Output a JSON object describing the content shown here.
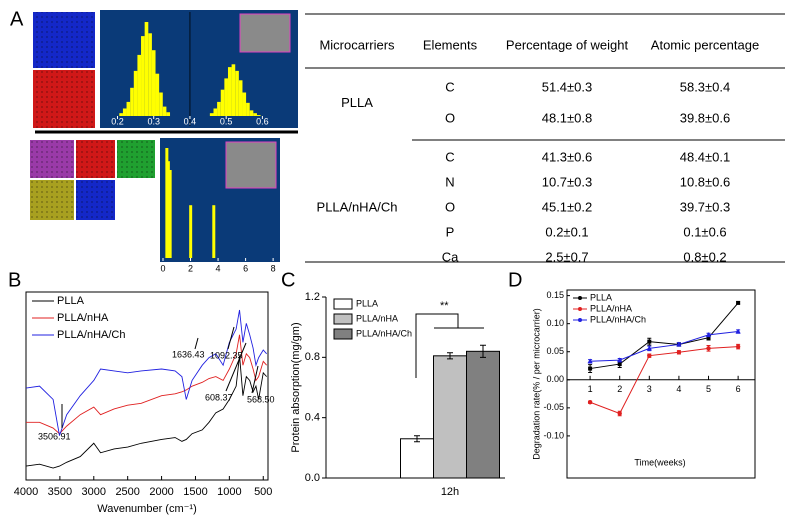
{
  "panels": [
    "A",
    "B",
    "C",
    "D"
  ],
  "table": {
    "header": [
      "Microcarriers",
      "Elements",
      "Percentage of weight",
      "Atomic percentage"
    ],
    "groups": [
      {
        "name": "PLLA",
        "rows": [
          [
            "C",
            "51.4±0.3",
            "58.3±0.4"
          ],
          [
            "O",
            "48.1±0.8",
            "39.8±0.6"
          ]
        ]
      },
      {
        "name": "PLLA/nHA/Ch",
        "rows": [
          [
            "C",
            "41.3±0.6",
            "48.4±0.1"
          ],
          [
            "N",
            "10.7±0.3",
            "10.8±0.6"
          ],
          [
            "O",
            "45.1±0.2",
            "39.7±0.3"
          ],
          [
            "P",
            "0.2±0.1",
            "0.1±0.6"
          ],
          [
            "Ca",
            "2.5±0.7",
            "0.8±0.2"
          ]
        ]
      }
    ]
  },
  "chart_data": [
    {
      "type": "spectrum",
      "color": "#ffff00",
      "xlim": [
        0.16,
        0.69
      ],
      "xticks": [
        0.2,
        0.3,
        0.4,
        0.5,
        0.6
      ],
      "markers": [
        0.4
      ],
      "x": [
        0.21,
        0.22,
        0.23,
        0.24,
        0.25,
        0.26,
        0.27,
        0.28,
        0.29,
        0.3,
        0.31,
        0.32,
        0.33,
        0.34,
        0.46,
        0.47,
        0.48,
        0.49,
        0.5,
        0.51,
        0.52,
        0.53,
        0.54,
        0.55,
        0.56,
        0.57,
        0.58,
        0.59
      ],
      "values": [
        3,
        8,
        15,
        30,
        48,
        65,
        85,
        100,
        88,
        70,
        45,
        25,
        10,
        4,
        3,
        8,
        15,
        28,
        40,
        52,
        55,
        48,
        38,
        25,
        14,
        6,
        3,
        1
      ]
    },
    {
      "type": "spectrum",
      "color": "#ffff00",
      "xlim": [
        0,
        8.5
      ],
      "xticks": [
        0,
        2,
        4,
        6,
        8
      ],
      "x": [
        0.28,
        0.39,
        0.52,
        2.01,
        3.69
      ],
      "values": [
        100,
        88,
        80,
        48,
        48
      ]
    },
    {
      "type": "line",
      "xlabel": "Wavenumber (cm⁻¹)",
      "xlim": [
        4000,
        430
      ],
      "xticks": [
        4000,
        3500,
        3000,
        2500,
        2000,
        1500,
        1000,
        500
      ],
      "annotations": [
        "3506.91",
        "1636.43",
        "1092.35",
        "608.37",
        "568.50"
      ],
      "x": [
        4000,
        3800,
        3600,
        3506,
        3400,
        3200,
        3000,
        2900,
        2700,
        2500,
        2300,
        2000,
        1800,
        1700,
        1636,
        1550,
        1400,
        1300,
        1200,
        1092,
        1000,
        900,
        850,
        800,
        750,
        700,
        650,
        608,
        568,
        500,
        450
      ],
      "series": [
        {
          "name": "PLLA",
          "color": "#000000",
          "values": [
            13,
            14,
            12,
            13,
            15,
            18,
            25,
            20,
            22,
            23,
            25,
            27,
            28,
            26,
            27,
            30,
            32,
            36,
            41,
            43,
            48,
            55,
            71,
            50,
            60,
            58,
            52,
            55,
            48,
            62,
            60
          ]
        },
        {
          "name": "PLLA/nHA",
          "color": "#e02020",
          "values": [
            36,
            36,
            33,
            30,
            34,
            40,
            44,
            40,
            43,
            45,
            46,
            50,
            51,
            52,
            53,
            55,
            57,
            59,
            60,
            58,
            64,
            72,
            82,
            66,
            72,
            70,
            64,
            58,
            60,
            68,
            66
          ]
        },
        {
          "name": "PLLA/nHA/Ch",
          "color": "#2020e0",
          "values": [
            54,
            55,
            48,
            29,
            40,
            50,
            58,
            64,
            63,
            62,
            63,
            64,
            63,
            60,
            48,
            58,
            66,
            70,
            72,
            66,
            78,
            85,
            95,
            78,
            88,
            82,
            75,
            66,
            70,
            74,
            72
          ]
        }
      ]
    },
    {
      "type": "bar",
      "ylabel": "Protein absorption(mg/gm)",
      "categories": [
        "12h"
      ],
      "ylim": [
        0,
        1.2
      ],
      "yticks": [
        {
          "value": 0,
          "label": "0.0"
        },
        0.4,
        0.8,
        1.2
      ],
      "annotations": [
        "**"
      ],
      "series": [
        {
          "name": "PLLA",
          "color": "#ffffff",
          "values": [
            0.26
          ],
          "errors": [
            0.02
          ]
        },
        {
          "name": "PLLA/nHA",
          "color": "#c0c0c0",
          "values": [
            0.81
          ],
          "errors": [
            0.02
          ]
        },
        {
          "name": "PLLA/nHA/Ch",
          "color": "#808080",
          "values": [
            0.84
          ],
          "errors": [
            0.04
          ]
        }
      ]
    },
    {
      "type": "line",
      "xlabel": "Time(weeks)",
      "ylabel": "Degradation rate(% / per microcarrier)",
      "xlim": [
        0.22,
        6.57
      ],
      "ylim": [
        -0.175,
        0.16
      ],
      "xticks": [
        1,
        2,
        3,
        4,
        5,
        6
      ],
      "yticks": [
        {
          "value": -0.1,
          "label": "-0.10"
        },
        -0.05,
        {
          "value": 0,
          "label": "0.00"
        },
        0.05,
        {
          "value": 0.1,
          "label": "0.10"
        },
        0.15
      ],
      "x": [
        1,
        2,
        3,
        4,
        5,
        6
      ],
      "series": [
        {
          "name": "PLLA",
          "color": "#000000",
          "marker": "square",
          "values": [
            0.02,
            0.028,
            0.068,
            0.063,
            0.075,
            0.137
          ],
          "errors": [
            0.007,
            0.006,
            0.006,
            0.003,
            0.004,
            0.002
          ]
        },
        {
          "name": "PLLA/nHA",
          "color": "#e02020",
          "marker": "circle",
          "values": [
            -0.04,
            -0.06,
            0.043,
            0.049,
            0.056,
            0.059
          ],
          "errors": [
            0.002,
            0.004,
            0.003,
            0.003,
            0.005,
            0.004
          ]
        },
        {
          "name": "PLLA/nHA/Ch",
          "color": "#2020e0",
          "marker": "triangle",
          "values": [
            0.033,
            0.035,
            0.056,
            0.063,
            0.08,
            0.086
          ],
          "errors": [
            0.003,
            0.003,
            0.004,
            0.003,
            0.003,
            0.003
          ]
        }
      ]
    }
  ]
}
